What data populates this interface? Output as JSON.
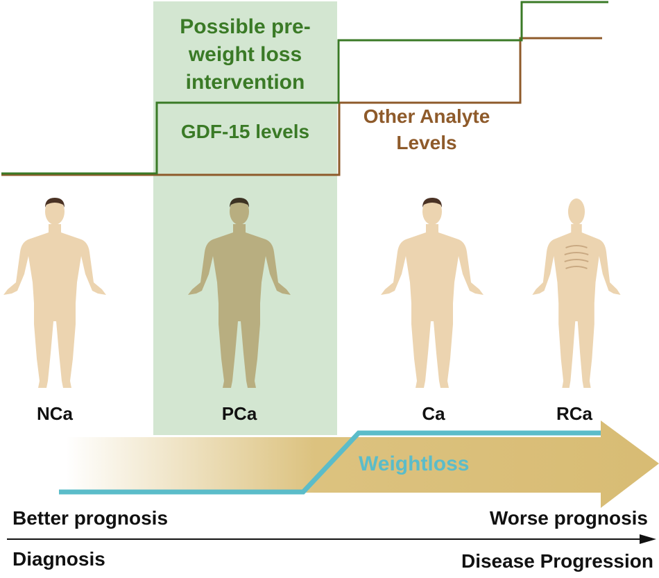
{
  "panel": {
    "title_line1": "Possible pre-",
    "title_line2": "weight loss",
    "title_line3": "intervention"
  },
  "curves": {
    "gdf15_label": "GDF-15 levels",
    "other_label_line1": "Other Analyte",
    "other_label_line2": "Levels",
    "gdf15_color": "#3a7a26",
    "other_color": "#8e5a2a"
  },
  "figures": [
    {
      "label": "NCa"
    },
    {
      "label": "PCa"
    },
    {
      "label": "Ca"
    },
    {
      "label": "RCa"
    }
  ],
  "progression": {
    "weightloss_label": "Weightloss",
    "arrow_color": "#d8bd77",
    "weightloss_color": "#5bbcc9"
  },
  "axis": {
    "left_top": "Better prognosis",
    "left_bottom": "Diagnosis",
    "right_top": "Worse prognosis",
    "right_bottom": "Disease Progression"
  }
}
